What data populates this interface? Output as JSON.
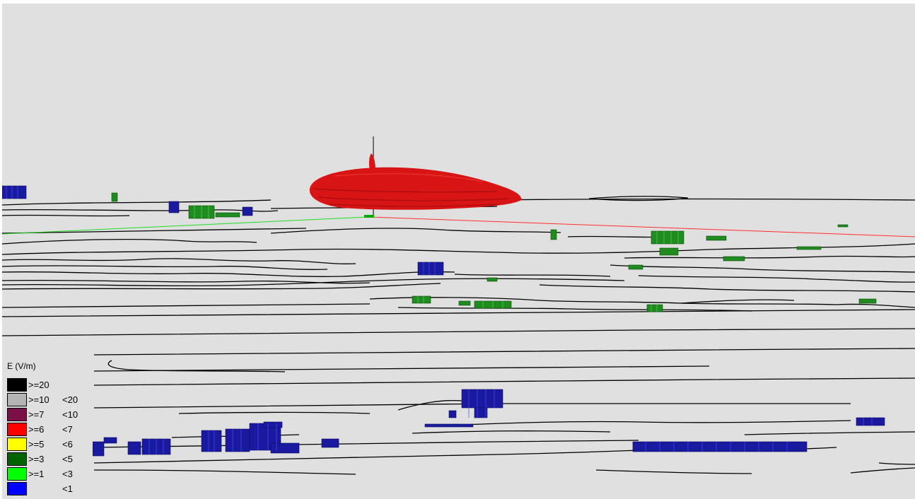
{
  "legend": {
    "title": "E (V/m)",
    "items": [
      {
        "lo": ">=20",
        "hi": "",
        "color": "#000000"
      },
      {
        "lo": ">=10",
        "hi": "<20",
        "color": "#b4b4b4"
      },
      {
        "lo": ">=7",
        "hi": "<10",
        "color": "#7a1046"
      },
      {
        "lo": ">=6",
        "hi": "<7",
        "color": "#ff0000"
      },
      {
        "lo": ">=5",
        "hi": "<6",
        "color": "#ffff00"
      },
      {
        "lo": ">=3",
        "hi": "<5",
        "color": "#006400"
      },
      {
        "lo": ">=1",
        "hi": "<3",
        "color": "#00ff00"
      },
      {
        "lo": "",
        "hi": "<1",
        "color": "#0000ff"
      }
    ]
  },
  "colors": {
    "background": "#e0e0e0",
    "radiation_lobe": "#d81414",
    "terrain_lines": "#000000",
    "buildings_low": "#1a1aa0",
    "buildings_mid": "#1e8c1e",
    "x_axis": "#ff0000",
    "y_axis": "#00ff00"
  }
}
